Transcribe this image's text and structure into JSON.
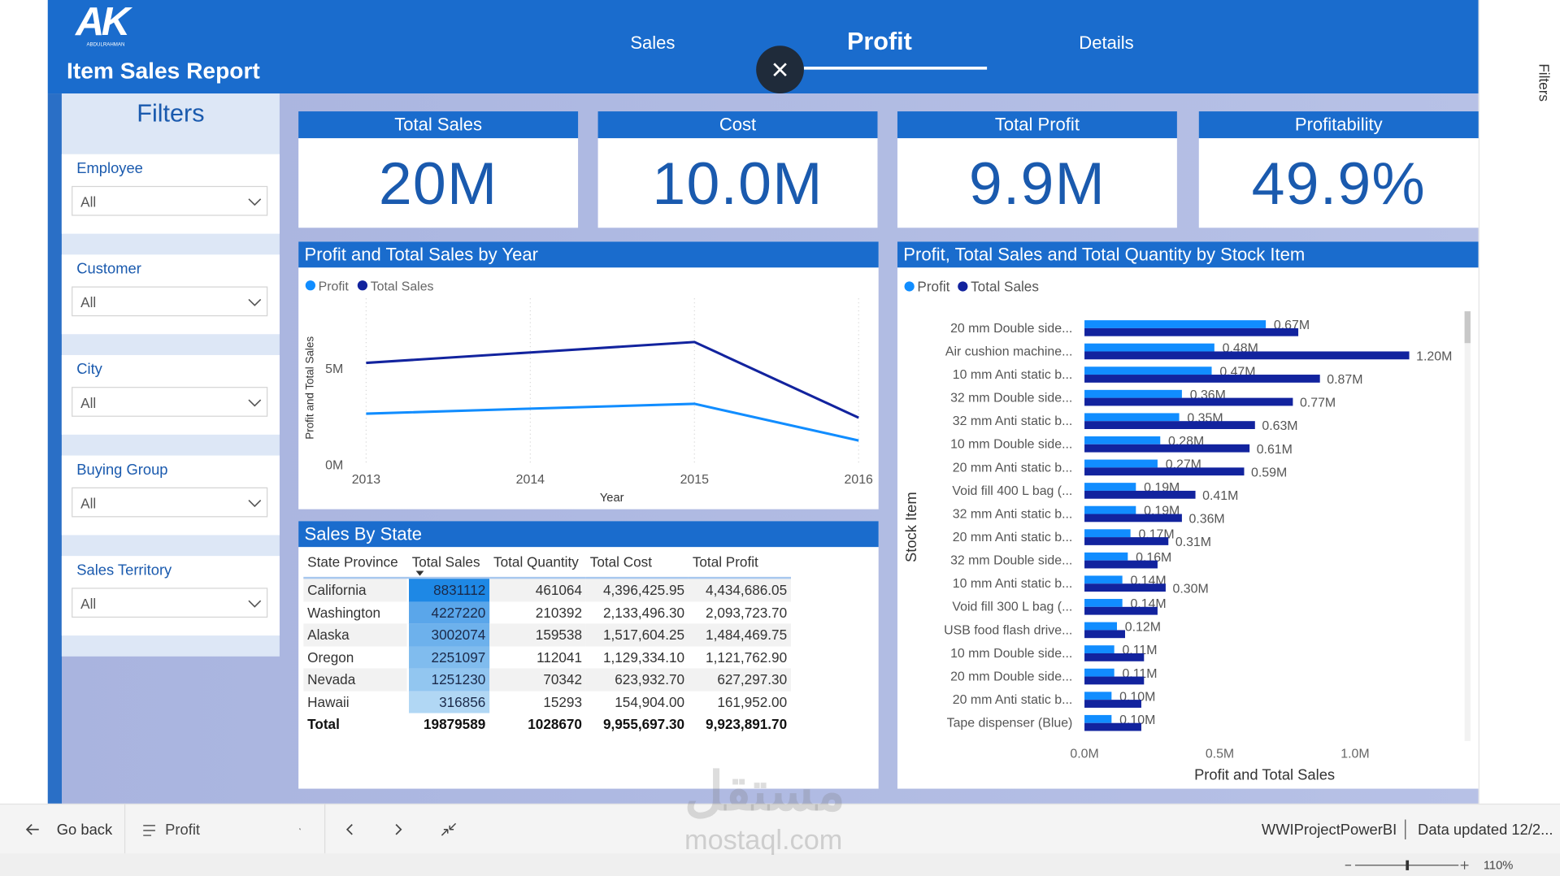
{
  "header": {
    "logo": "AK",
    "logo_subtitle": "ABDULRAHMAN",
    "title": "Item Sales Report",
    "tabs": [
      "Sales",
      "Profit",
      "Details"
    ],
    "active_tab": 1
  },
  "filters": {
    "title": "Filters",
    "items": [
      {
        "label": "Employee",
        "value": "All"
      },
      {
        "label": "Customer",
        "value": "All"
      },
      {
        "label": "City",
        "value": "All"
      },
      {
        "label": "Buying Group",
        "value": "All"
      },
      {
        "label": "Sales Territory",
        "value": "All"
      }
    ]
  },
  "kpis": [
    {
      "label": "Total Sales",
      "value": "20M"
    },
    {
      "label": "Cost",
      "value": "10.0M"
    },
    {
      "label": "Total Profit",
      "value": "9.9M"
    },
    {
      "label": "Profitability",
      "value": "49.9%"
    }
  ],
  "table": {
    "title": "Sales By State",
    "columns": [
      "State Province",
      "Total Sales",
      "Total Quantity",
      "Total Cost",
      "Total Profit"
    ],
    "rows": [
      [
        "California",
        "8831112",
        "461064",
        "4,396,425.95",
        "4,434,686.05"
      ],
      [
        "Washington",
        "4227220",
        "210392",
        "2,133,496.30",
        "2,093,723.70"
      ],
      [
        "Alaska",
        "3002074",
        "159538",
        "1,517,604.25",
        "1,484,469.75"
      ],
      [
        "Oregon",
        "2251097",
        "112041",
        "1,129,334.10",
        "1,121,762.90"
      ],
      [
        "Nevada",
        "1251230",
        "70342",
        "623,932.70",
        "627,297.30"
      ],
      [
        "Hawaii",
        "316856",
        "15293",
        "154,904.00",
        "161,952.00"
      ]
    ],
    "total": [
      "Total",
      "19879589",
      "1028670",
      "9,955,697.30",
      "9,923,891.70"
    ]
  },
  "chart_data": [
    {
      "type": "line",
      "title": "Profit and Total Sales by Year",
      "x": [
        2013,
        2014,
        2015,
        2016
      ],
      "xlim": [
        2013,
        2016
      ],
      "xticks": [
        2013,
        2014,
        2015,
        2016
      ],
      "x_label": "Year",
      "y_label": "Profit and Total Sales",
      "ylim": [
        0,
        8600000
      ],
      "yticks": [
        {
          "value": 0,
          "label": "0M"
        },
        {
          "value": 5000000,
          "label": "5M"
        }
      ],
      "grid": true,
      "legend": "top-left",
      "series": [
        {
          "name": "Profit",
          "color": "#118dff",
          "values": [
            2630000,
            2890000,
            3140000,
            1240000
          ]
        },
        {
          "name": "Total Sales",
          "color": "#12239e",
          "values": [
            5260000,
            5800000,
            6340000,
            2420000
          ]
        }
      ]
    },
    {
      "type": "bar",
      "orientation": "horizontal",
      "title": "Profit, Total Sales and Total Quantity by Stock Item",
      "x_label": "Profit and Total Sales",
      "y_label": "Stock Item",
      "legend": "top-left",
      "categories": [
        "20 mm Double side...",
        "Air cushion machine...",
        "10 mm Anti static b...",
        "32 mm Double side...",
        "32 mm Anti static b...",
        "10 mm Double side...",
        "20 mm Anti static b...",
        "Void fill 400 L bag (...",
        "32 mm Anti static b...",
        "20 mm Anti static b...",
        "32 mm Double side...",
        "10 mm Anti static b...",
        "Void fill 300 L bag (...",
        "USB food flash drive...",
        "10 mm Double side...",
        "20 mm Double side...",
        "20 mm Anti static b...",
        "Tape dispenser (Blue)"
      ],
      "xlim": [
        0,
        1340000
      ],
      "xticks": [
        {
          "value": 0,
          "label": "0.0M"
        },
        {
          "value": 500000,
          "label": "0.5M"
        },
        {
          "value": 1000000,
          "label": "1.0M"
        }
      ],
      "series": [
        {
          "name": "Profit",
          "color": "#118dff",
          "values": [
            670000,
            480000,
            470000,
            360000,
            350000,
            280000,
            270000,
            190000,
            190000,
            170000,
            160000,
            140000,
            140000,
            120000,
            110000,
            110000,
            100000,
            100000
          ],
          "value_labels": [
            "0.67M",
            "0.48M",
            "0.47M",
            "0.36M",
            "0.35M",
            "0.28M",
            "0.27M",
            "0.19M",
            "0.19M",
            "0.17M",
            "0.16M",
            "0.14M",
            "0.14M",
            "0.12M",
            "0.11M",
            "0.11M",
            "0.10M",
            "0.10M"
          ]
        },
        {
          "name": "Total Sales",
          "color": "#12239e",
          "values": [
            790000,
            1200000,
            870000,
            770000,
            630000,
            610000,
            590000,
            410000,
            360000,
            310000,
            270000,
            300000,
            270000,
            150000,
            220000,
            220000,
            210000,
            210000
          ],
          "value_labels": [
            null,
            "1.20M",
            "0.87M",
            "0.77M",
            "0.63M",
            "0.61M",
            "0.59M",
            "0.41M",
            "0.36M",
            "0.31M",
            null,
            "0.30M",
            null,
            null,
            null,
            null,
            null,
            null
          ]
        }
      ]
    }
  ],
  "footer": {
    "back": "Go back",
    "page": "Profit",
    "report": "WWIProjectPowerBI",
    "updated": "Data updated 12/2...",
    "zoom": "110%"
  },
  "side_pane": {
    "title": "Filters"
  },
  "watermark": {
    "arabic": "مستقل",
    "latin": "mostaql.com"
  }
}
